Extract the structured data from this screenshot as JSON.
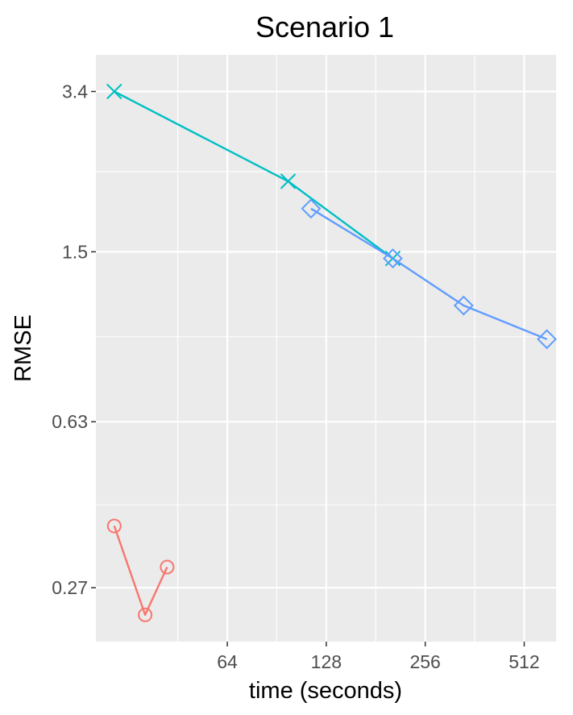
{
  "chart_data": {
    "type": "line",
    "title": "Scenario 1",
    "xlabel": "time (seconds)",
    "ylabel": "RMSE",
    "x_scale": "log2",
    "y_scale": "log",
    "x_ticks": [
      64,
      128,
      256,
      512
    ],
    "y_ticks": [
      0.27,
      0.63,
      1.5,
      3.4
    ],
    "xlim": [
      25.5,
      640
    ],
    "ylim": [
      0.205,
      4.1
    ],
    "grid": true,
    "legend": "none",
    "series": [
      {
        "color": "#F8766D",
        "marker": "circle",
        "points": [
          [
            29,
            0.37
          ],
          [
            36,
            0.235
          ],
          [
            42,
            0.3
          ]
        ]
      },
      {
        "color": "#00BFC4",
        "marker": "x",
        "points": [
          [
            29,
            3.4
          ],
          [
            98,
            2.15
          ],
          [
            204,
            1.45
          ]
        ]
      },
      {
        "color": "#619CFF",
        "marker": "diamond",
        "points": [
          [
            115,
            1.87
          ],
          [
            204,
            1.45
          ],
          [
            335,
            1.14
          ],
          [
            600,
            0.96
          ]
        ]
      }
    ]
  }
}
